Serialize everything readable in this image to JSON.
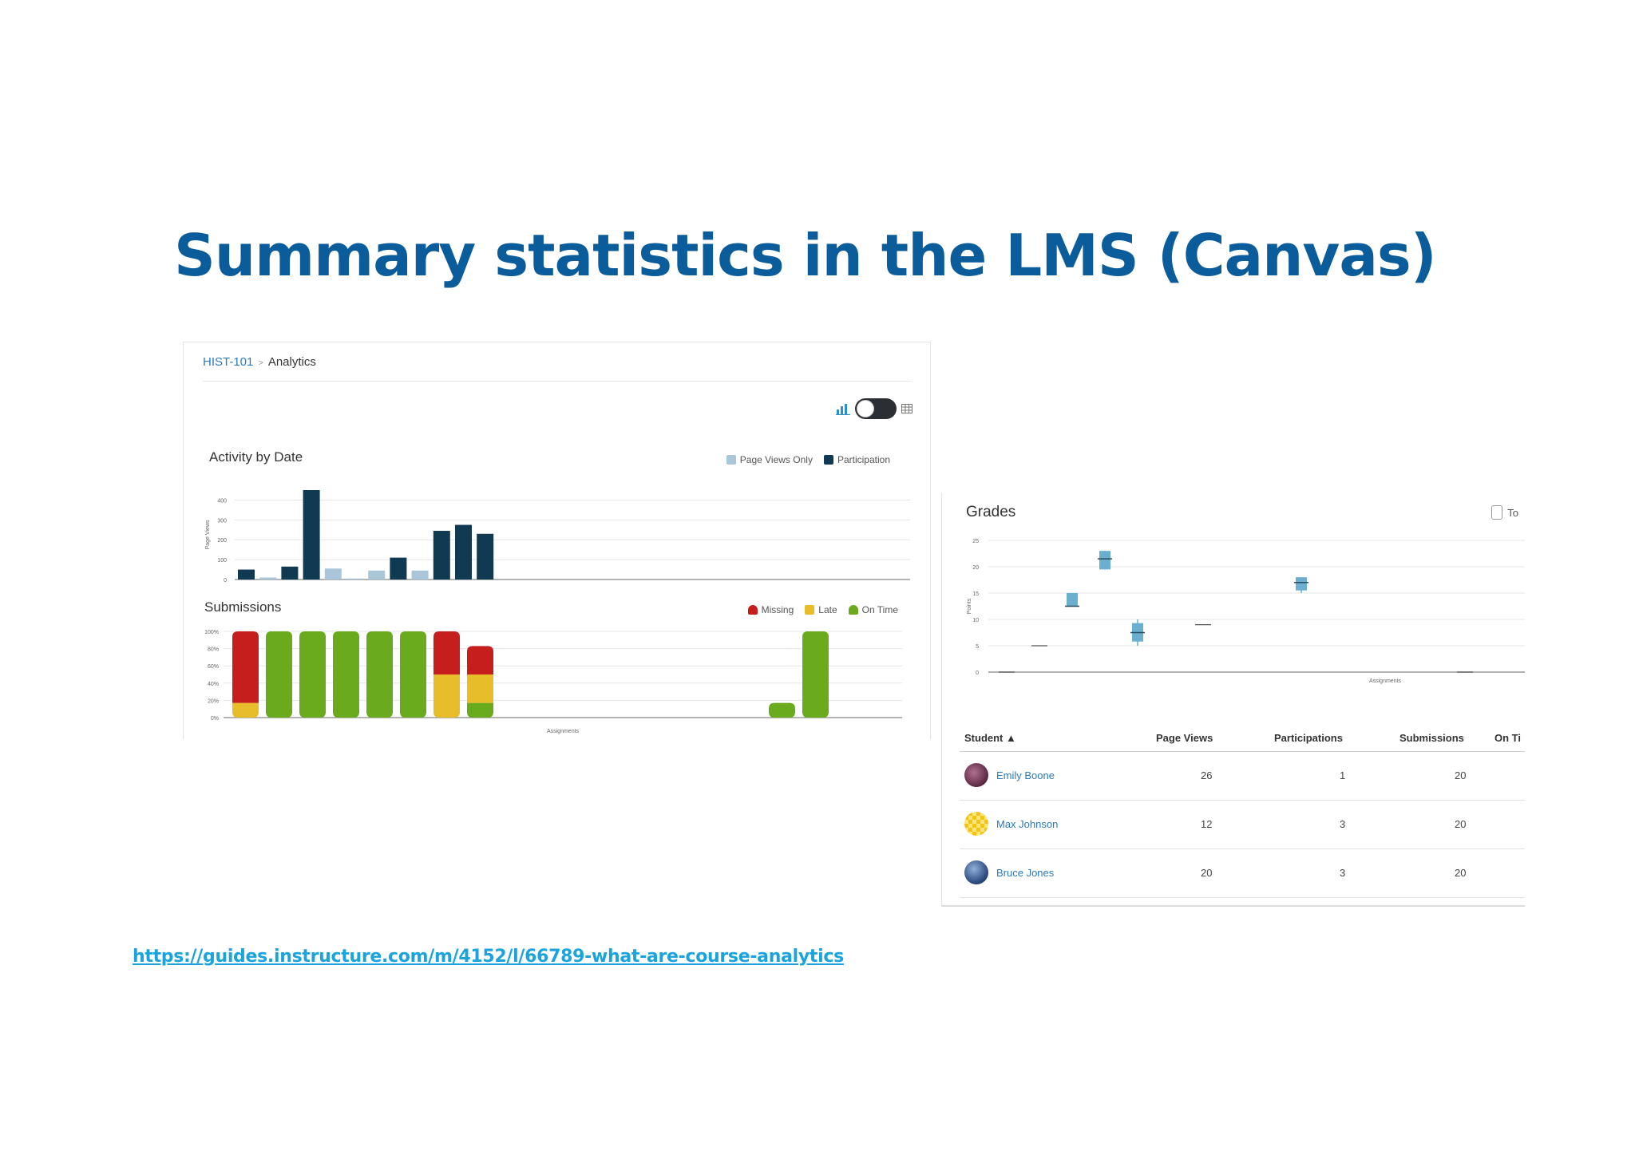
{
  "slide": {
    "title": "Summary statistics in the LMS (Canvas)",
    "source_url": "https://guides.instructure.com/m/4152/l/66789-what-are-course-analytics"
  },
  "breadcrumb": {
    "course": "HIST-101",
    "page": "Analytics"
  },
  "icons": {
    "chart_view": "bar-chart-icon",
    "table_view": "table-icon"
  },
  "colors": {
    "page_views": "#a9c7d8",
    "participation": "#0f3a52",
    "missing": "#c61d1d",
    "late": "#e8bd2a",
    "on_time": "#6aab1e",
    "box": "#6aaed0",
    "link": "#2b7abc",
    "title": "#0b5c9b"
  },
  "activity": {
    "title": "Activity by Date",
    "legend": {
      "page_views": "Page Views Only",
      "participation": "Participation"
    },
    "ylabel": "Page Views"
  },
  "submissions": {
    "title": "Submissions",
    "legend": {
      "missing": "Missing",
      "late": "Late",
      "on_time": "On Time"
    },
    "xlabel": "Assignments"
  },
  "grades": {
    "title": "Grades",
    "total_toggle": "To",
    "ylabel": "Points",
    "xlabel": "Assignments"
  },
  "table": {
    "headers": {
      "student": "Student ▲",
      "page_views": "Page Views",
      "participations": "Participations",
      "submissions": "Submissions",
      "on_time": "On Ti"
    },
    "rows": [
      {
        "name": "Emily Boone",
        "page_views": "26",
        "participations": "1",
        "submissions": "20"
      },
      {
        "name": "Max Johnson",
        "page_views": "12",
        "participations": "3",
        "submissions": "20"
      },
      {
        "name": "Bruce Jones",
        "page_views": "20",
        "participations": "3",
        "submissions": "20"
      }
    ]
  },
  "chart_data": [
    {
      "type": "bar",
      "title": "Activity by Date",
      "ylabel": "Page Views",
      "ylim": [
        0,
        450
      ],
      "yticks": [
        0,
        100,
        200,
        300,
        400
      ],
      "grid": true,
      "legend_position": "top-right",
      "series": [
        {
          "name": "Participation",
          "values": [
            50,
            0,
            65,
            450,
            0,
            0,
            0,
            110,
            0,
            245,
            275,
            230
          ]
        },
        {
          "name": "Page Views Only",
          "values": [
            0,
            10,
            0,
            0,
            55,
            5,
            45,
            0,
            45,
            0,
            0,
            0
          ]
        }
      ]
    },
    {
      "type": "bar",
      "title": "Submissions",
      "xlabel": "Assignments",
      "ylim": [
        0,
        100
      ],
      "yticks": [
        "0%",
        "20%",
        "40%",
        "60%",
        "80%",
        "100%"
      ],
      "grid": true,
      "legend_position": "top-right",
      "slots": 18,
      "series": [
        {
          "name": "Missing",
          "values": [
            {
              "i": 0,
              "v": 83
            },
            {
              "i": 6,
              "v": 50
            },
            {
              "i": 7,
              "v": 33
            }
          ]
        },
        {
          "name": "Late",
          "values": [
            {
              "i": 0,
              "v": 17
            },
            {
              "i": 6,
              "v": 50
            },
            {
              "i": 7,
              "v": 33
            }
          ]
        },
        {
          "name": "On Time",
          "values": [
            {
              "i": 1,
              "v": 100
            },
            {
              "i": 2,
              "v": 100
            },
            {
              "i": 3,
              "v": 100
            },
            {
              "i": 4,
              "v": 100
            },
            {
              "i": 5,
              "v": 100
            },
            {
              "i": 7,
              "v": 17
            },
            {
              "i": 16,
              "v": 17
            },
            {
              "i": 17,
              "v": 100
            }
          ]
        }
      ]
    },
    {
      "type": "scatter",
      "title": "Grades",
      "ylabel": "Points",
      "xlabel": "Assignments",
      "ylim": [
        0,
        25
      ],
      "yticks": [
        0,
        5,
        10,
        15,
        20,
        25
      ],
      "grid": true,
      "boxes": [
        {
          "i": 0,
          "low": 0,
          "q1": 0,
          "med": 0,
          "q3": 0,
          "high": 0
        },
        {
          "i": 1,
          "low": 5,
          "q1": 5,
          "med": 5,
          "q3": 5,
          "high": 5
        },
        {
          "i": 2,
          "low": 12.5,
          "q1": 12.5,
          "med": 12.5,
          "q3": 15,
          "high": 15
        },
        {
          "i": 3,
          "low": 19.5,
          "q1": 19.5,
          "med": 21.5,
          "q3": 23,
          "high": 23
        },
        {
          "i": 4,
          "low": 5,
          "q1": 5.8,
          "med": 7.5,
          "q3": 9.3,
          "high": 10
        },
        {
          "i": 6,
          "low": 9,
          "q1": 9,
          "med": 9,
          "q3": 9,
          "high": 9
        },
        {
          "i": 9,
          "low": 15,
          "q1": 15.5,
          "med": 17,
          "q3": 18,
          "high": 18
        },
        {
          "i": 14,
          "low": 0,
          "q1": 0,
          "med": 0,
          "q3": 0,
          "high": 0
        }
      ]
    }
  ]
}
